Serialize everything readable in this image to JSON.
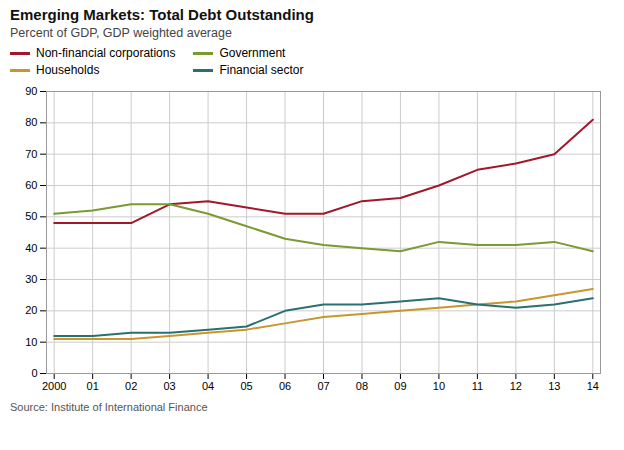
{
  "chart_data": {
    "type": "line",
    "title": "Emerging Markets: Total Debt Outstanding",
    "subtitle": "Percent of GDP, GDP weighted average",
    "source": "Source: Institute of International Finance",
    "x": [
      2000,
      2001,
      2002,
      2003,
      2004,
      2005,
      2006,
      2007,
      2008,
      2009,
      2010,
      2011,
      2012,
      2013,
      2014
    ],
    "series": [
      {
        "name": "Non-financial corporations",
        "color": "#a0182a",
        "values": [
          48,
          48,
          48,
          54,
          55,
          53,
          51,
          51,
          55,
          56,
          60,
          65,
          67,
          70,
          81
        ]
      },
      {
        "name": "Government",
        "color": "#7a9a32",
        "values": [
          51,
          52,
          54,
          54,
          51,
          47,
          43,
          41,
          40,
          39,
          42,
          41,
          41,
          42,
          39
        ]
      },
      {
        "name": "Households",
        "color": "#c8962a",
        "values": [
          11,
          11,
          11,
          12,
          13,
          14,
          16,
          18,
          19,
          20,
          21,
          22,
          23,
          25,
          27
        ]
      },
      {
        "name": "Financial sector",
        "color": "#2a7070",
        "values": [
          12,
          12,
          13,
          13,
          14,
          15,
          20,
          22,
          22,
          23,
          24,
          22,
          21,
          22,
          24
        ]
      }
    ],
    "xlim": [
      1999.8,
      2014.2
    ],
    "xticks": [
      2000,
      {
        "value": 2001,
        "label": "01"
      },
      {
        "value": 2002,
        "label": "02"
      },
      {
        "value": 2003,
        "label": "03"
      },
      {
        "value": 2004,
        "label": "04"
      },
      {
        "value": 2005,
        "label": "05"
      },
      {
        "value": 2006,
        "label": "06"
      },
      {
        "value": 2007,
        "label": "07"
      },
      {
        "value": 2008,
        "label": "08"
      },
      {
        "value": 2009,
        "label": "09"
      },
      {
        "value": 2010,
        "label": "10"
      },
      {
        "value": 2011,
        "label": "11"
      },
      {
        "value": 2012,
        "label": "12"
      },
      {
        "value": 2013,
        "label": "13"
      },
      {
        "value": 2014,
        "label": "14"
      }
    ],
    "ylim": [
      0,
      90
    ],
    "yticks": [
      0,
      10,
      20,
      30,
      40,
      50,
      60,
      70,
      80,
      90
    ],
    "grid": true,
    "legend": "upper left"
  }
}
